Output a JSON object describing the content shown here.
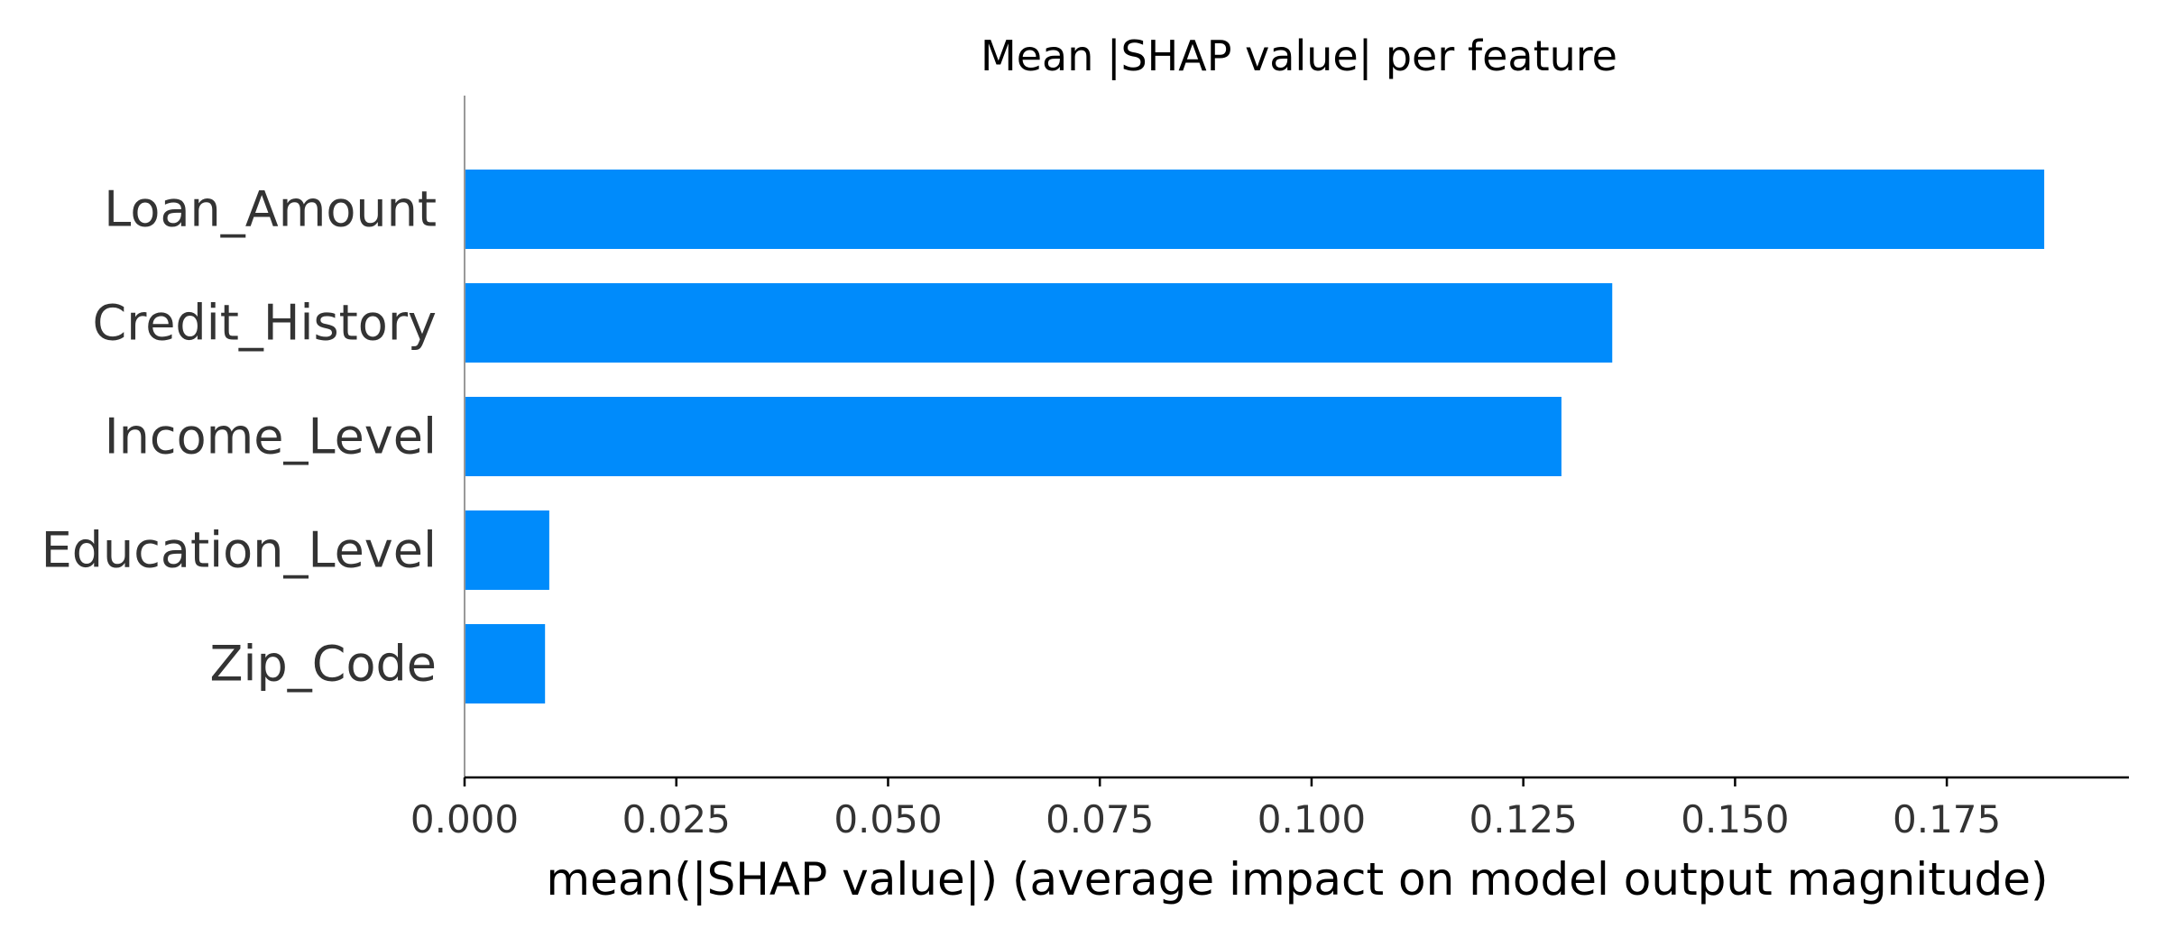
{
  "chart_data": {
    "type": "bar",
    "orientation": "horizontal",
    "title": "Mean |SHAP value| per feature",
    "xlabel": "mean(|SHAP value|) (average impact on model output magnitude)",
    "ylabel": "",
    "categories": [
      "Loan_Amount",
      "Credit_History",
      "Income_Level",
      "Education_Level",
      "Zip_Code"
    ],
    "values": [
      0.1865,
      0.1355,
      0.1295,
      0.01,
      0.0095
    ],
    "xlim": [
      0,
      0.1965
    ],
    "xticks": [
      0.0,
      0.025,
      0.05,
      0.075,
      0.1,
      0.125,
      0.15,
      0.175
    ],
    "xtick_labels": [
      "0.000",
      "0.025",
      "0.050",
      "0.075",
      "0.100",
      "0.125",
      "0.150",
      "0.175"
    ],
    "grid": false,
    "legend": "none",
    "colors": {
      "bar": "#008bfb",
      "feature_text": "#333333",
      "axis": "#000000",
      "left_spine": "#999999"
    }
  }
}
